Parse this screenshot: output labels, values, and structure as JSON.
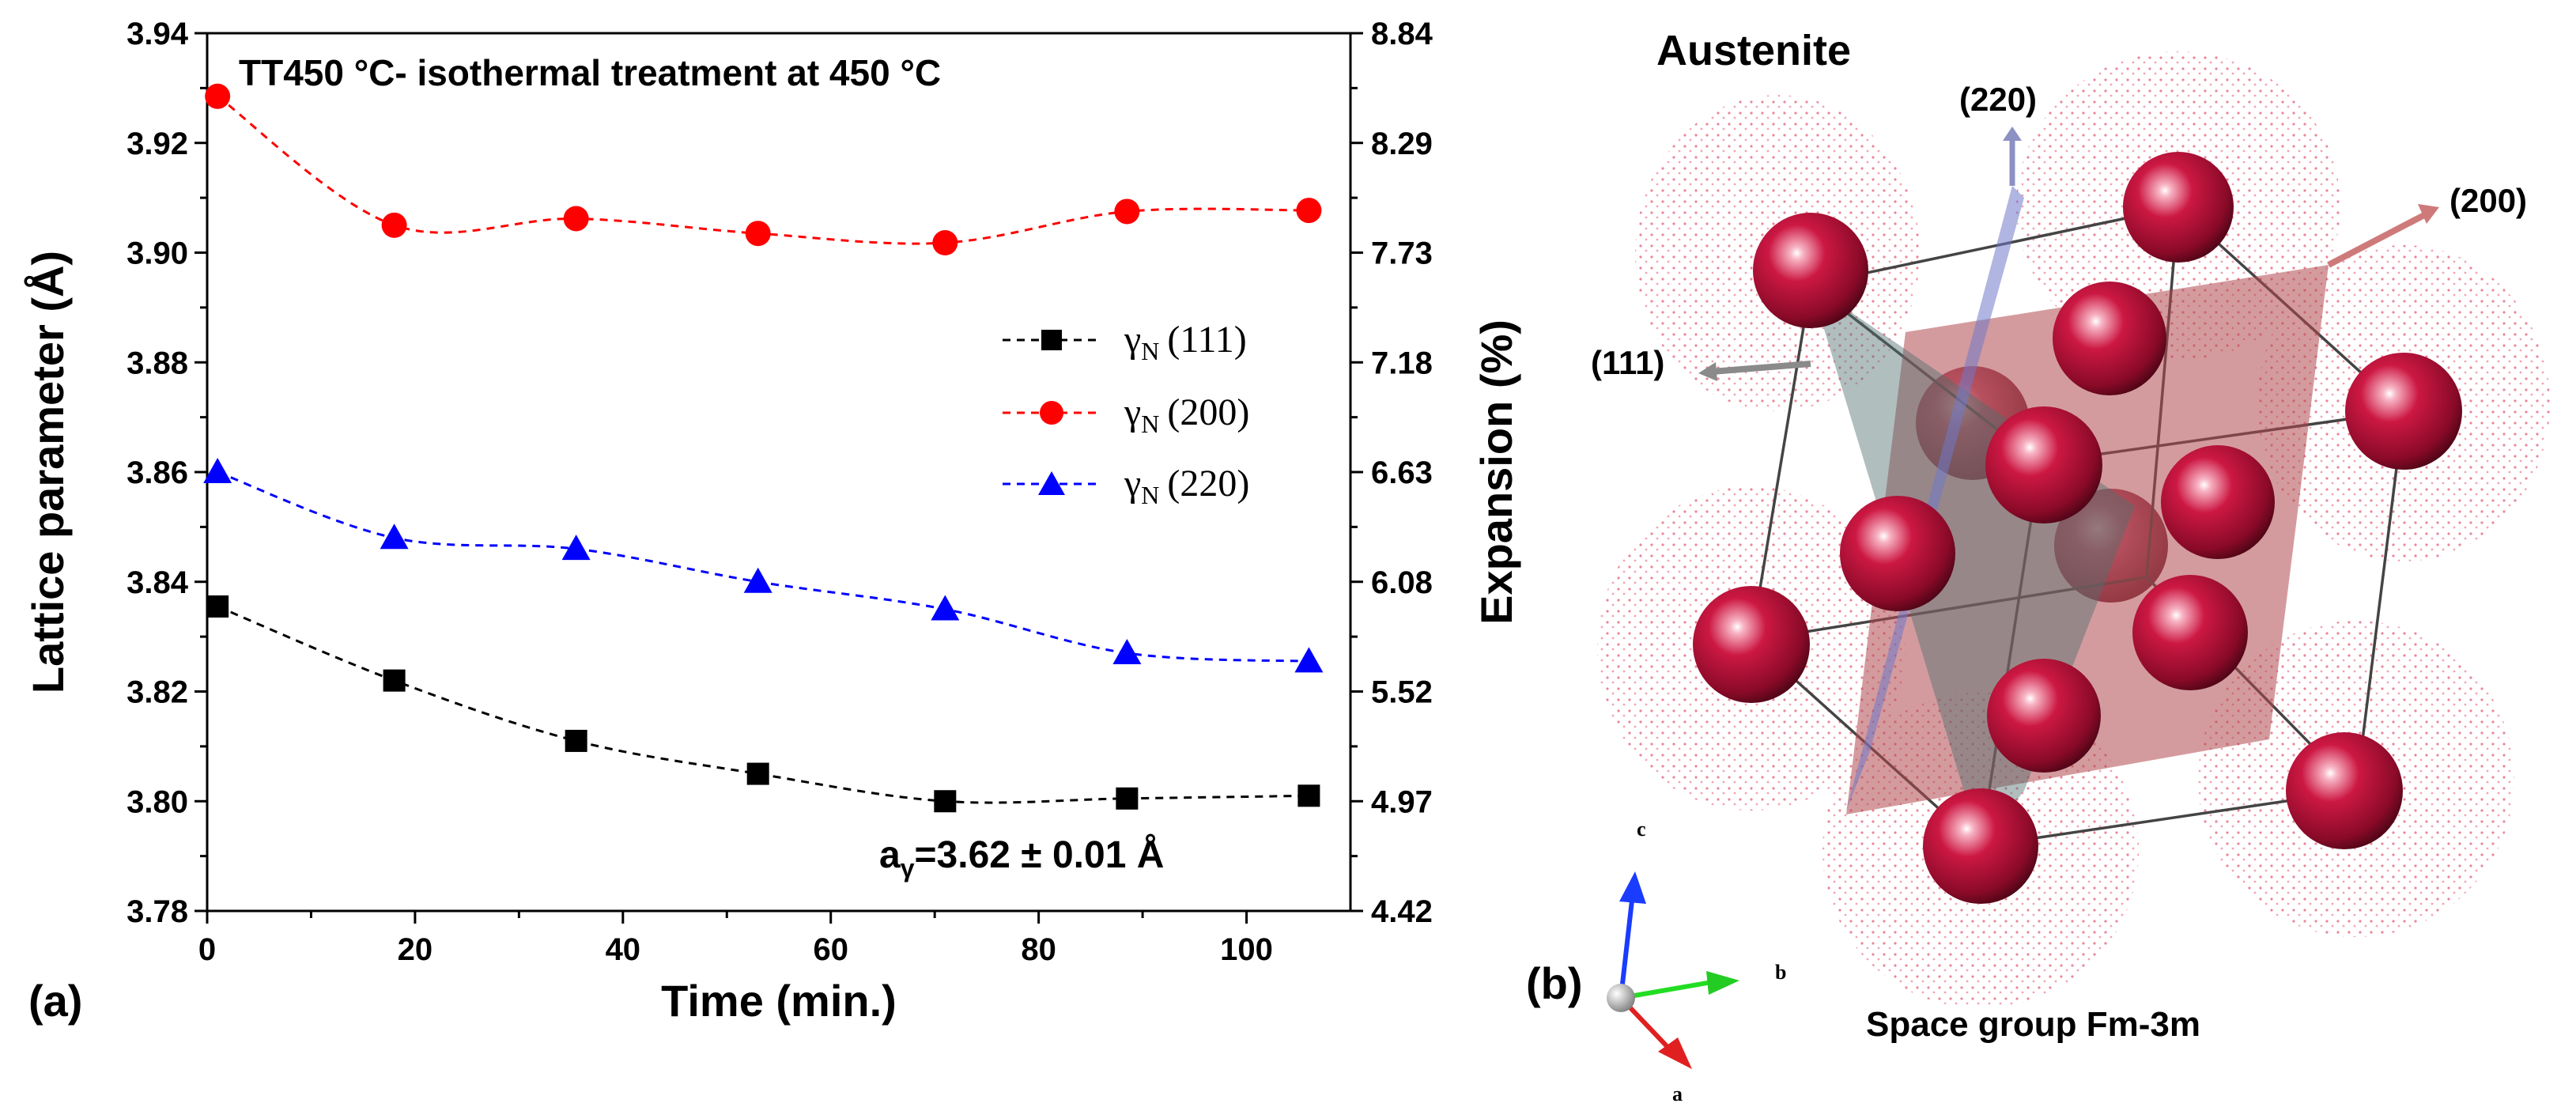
{
  "chart_data": {
    "type": "line",
    "title": "TT450 °C- isothermal treatment at 450 °C",
    "xlabel": "Time (min.)",
    "ylabel": "Lattice parameter (Å)",
    "y2label": "Expansion (%)",
    "xlim": [
      0,
      110
    ],
    "ylim": [
      3.78,
      3.94
    ],
    "x_ticks": [
      "0",
      "20",
      "40",
      "60",
      "80",
      "100"
    ],
    "y_ticks": [
      "3.78",
      "3.80",
      "3.82",
      "3.84",
      "3.86",
      "3.88",
      "3.90",
      "3.92",
      "3.94"
    ],
    "y2_ticks": [
      "4.42",
      "4.97",
      "5.52",
      "6.08",
      "6.63",
      "7.18",
      "7.73",
      "8.29",
      "8.84"
    ],
    "x": [
      1,
      18,
      35.5,
      53,
      71,
      88.5,
      106
    ],
    "series": [
      {
        "name": "γ_N (111)",
        "legend_main": "γ",
        "legend_sub": "N",
        "legend_tail": "(111)",
        "color": "#000000",
        "marker": "square",
        "values": [
          3.8355,
          3.822,
          3.811,
          3.805,
          3.8,
          3.8005,
          3.801
        ]
      },
      {
        "name": "γ_N (200)",
        "legend_main": "γ",
        "legend_sub": "N",
        "legend_tail": "(200)",
        "color": "#ff0000",
        "marker": "circle",
        "values": [
          3.9285,
          3.905,
          3.9062,
          3.9035,
          3.9018,
          3.9075,
          3.9077
        ]
      },
      {
        "name": "γ_N (220)",
        "legend_main": "γ",
        "legend_sub": "N",
        "legend_tail": "(220)",
        "color": "#0000ff",
        "marker": "triangle",
        "values": [
          3.86,
          3.848,
          3.846,
          3.84,
          3.835,
          3.827,
          3.8255
        ]
      }
    ],
    "annotation": {
      "main": "a",
      "sub": "γ",
      "tail": "=3.62 ± 0.01 Å"
    },
    "legend_position": "right"
  },
  "panel_a": "(a)",
  "panel_b": "(b)",
  "crystal": {
    "title": "Austenite",
    "space_group": "Space group Fm-3m",
    "planes": {
      "p111": "(111)",
      "p220": "(220)",
      "p200": "(200)"
    },
    "axes": {
      "a": "a",
      "b": "b",
      "c": "c"
    },
    "atom_color": "#b5123a"
  }
}
